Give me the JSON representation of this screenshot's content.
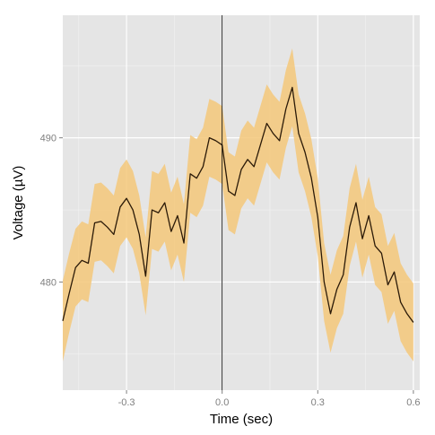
{
  "chart_data": {
    "type": "line",
    "title": "",
    "xlabel": "Time (sec)",
    "ylabel": "Voltage (µV)",
    "xlim": [
      -0.5,
      0.62
    ],
    "ylim": [
      472.5,
      498.5
    ],
    "x_ticks": [
      {
        "value": -0.3,
        "label": "-0.3"
      },
      {
        "value": 0.0,
        "label": "0.0"
      },
      {
        "value": 0.3,
        "label": "0.3"
      },
      {
        "value": 0.6,
        "label": "0.6"
      }
    ],
    "y_ticks": [
      {
        "value": 480,
        "label": "480"
      },
      {
        "value": 490,
        "label": "490"
      }
    ],
    "grid": true,
    "vline_x": 0.0,
    "colors": {
      "panel": "#e5e5e5",
      "grid_major": "#ffffff",
      "grid_minor": "#f2f2f2",
      "ribbon": "#f5c87a",
      "line": "#2b1a08",
      "vline": "#000000"
    },
    "series": [
      {
        "x": [
          -0.5,
          -0.48,
          -0.46,
          -0.44,
          -0.42,
          -0.4,
          -0.38,
          -0.36,
          -0.34,
          -0.32,
          -0.3,
          -0.28,
          -0.26,
          -0.24,
          -0.22,
          -0.2,
          -0.18,
          -0.16,
          -0.14,
          -0.12,
          -0.1,
          -0.08,
          -0.06,
          -0.04,
          -0.02,
          0.0,
          0.02,
          0.04,
          0.06,
          0.08,
          0.1,
          0.12,
          0.14,
          0.16,
          0.18,
          0.2,
          0.22,
          0.24,
          0.26,
          0.28,
          0.3,
          0.32,
          0.34,
          0.36,
          0.38,
          0.4,
          0.42,
          0.44,
          0.46,
          0.48,
          0.5,
          0.52,
          0.54,
          0.56,
          0.58,
          0.6
        ],
        "y": [
          477.3,
          479.2,
          481.0,
          481.5,
          481.3,
          484.1,
          484.2,
          483.8,
          483.3,
          485.2,
          485.8,
          485.0,
          483.3,
          480.4,
          485.0,
          484.8,
          485.5,
          483.5,
          484.6,
          482.7,
          487.5,
          487.2,
          488.0,
          490.0,
          489.8,
          489.5,
          486.3,
          486.0,
          487.8,
          488.5,
          488.0,
          489.5,
          491.0,
          490.3,
          489.8,
          492.0,
          493.5,
          490.3,
          489.0,
          487.2,
          484.5,
          480.0,
          477.8,
          479.5,
          480.5,
          483.8,
          485.5,
          483.0,
          484.6,
          482.5,
          482.0,
          479.8,
          480.7,
          478.6,
          477.8,
          477.2
        ],
        "lower": [
          474.5,
          476.5,
          478.3,
          478.8,
          478.6,
          481.4,
          481.5,
          481.1,
          480.6,
          482.5,
          483.1,
          482.3,
          480.6,
          477.7,
          482.3,
          482.1,
          482.8,
          480.8,
          481.9,
          480.0,
          484.8,
          484.5,
          485.3,
          487.3,
          487.1,
          486.8,
          483.6,
          483.3,
          485.1,
          485.8,
          485.3,
          486.8,
          488.3,
          487.6,
          487.1,
          489.3,
          490.8,
          487.6,
          486.3,
          484.5,
          481.8,
          477.3,
          475.1,
          476.8,
          477.8,
          481.1,
          482.8,
          480.3,
          481.9,
          479.8,
          479.3,
          477.1,
          478.0,
          475.9,
          475.1,
          474.5
        ],
        "upper": [
          480.1,
          482.0,
          483.7,
          484.2,
          484.0,
          486.8,
          486.9,
          486.5,
          486.0,
          487.9,
          488.5,
          487.7,
          486.0,
          483.1,
          487.7,
          487.5,
          488.2,
          486.2,
          487.3,
          485.4,
          490.2,
          489.9,
          490.7,
          492.7,
          492.5,
          492.2,
          489.0,
          488.7,
          490.5,
          491.2,
          490.7,
          492.2,
          493.7,
          493.0,
          492.5,
          494.7,
          496.2,
          493.0,
          491.7,
          489.9,
          487.2,
          482.7,
          480.5,
          482.2,
          483.2,
          486.5,
          488.2,
          485.7,
          487.3,
          485.2,
          484.7,
          482.5,
          483.4,
          481.3,
          480.5,
          479.9
        ]
      }
    ]
  }
}
